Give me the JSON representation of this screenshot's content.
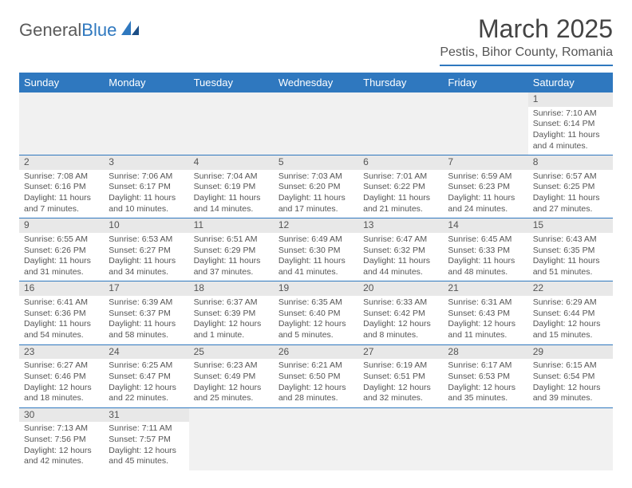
{
  "logo": {
    "text1": "General",
    "text2": "Blue"
  },
  "title": "March 2025",
  "location": "Pestis, Bihor County, Romania",
  "colors": {
    "accent": "#2f78bf",
    "header_bg": "#2f78bf",
    "header_fg": "#ffffff",
    "daynum_bg": "#e8e8e8",
    "blank_bg": "#f1f1f1"
  },
  "weekdays": [
    "Sunday",
    "Monday",
    "Tuesday",
    "Wednesday",
    "Thursday",
    "Friday",
    "Saturday"
  ],
  "days": {
    "1": {
      "sunrise": "7:10 AM",
      "sunset": "6:14 PM",
      "daylight": "11 hours and 4 minutes."
    },
    "2": {
      "sunrise": "7:08 AM",
      "sunset": "6:16 PM",
      "daylight": "11 hours and 7 minutes."
    },
    "3": {
      "sunrise": "7:06 AM",
      "sunset": "6:17 PM",
      "daylight": "11 hours and 10 minutes."
    },
    "4": {
      "sunrise": "7:04 AM",
      "sunset": "6:19 PM",
      "daylight": "11 hours and 14 minutes."
    },
    "5": {
      "sunrise": "7:03 AM",
      "sunset": "6:20 PM",
      "daylight": "11 hours and 17 minutes."
    },
    "6": {
      "sunrise": "7:01 AM",
      "sunset": "6:22 PM",
      "daylight": "11 hours and 21 minutes."
    },
    "7": {
      "sunrise": "6:59 AM",
      "sunset": "6:23 PM",
      "daylight": "11 hours and 24 minutes."
    },
    "8": {
      "sunrise": "6:57 AM",
      "sunset": "6:25 PM",
      "daylight": "11 hours and 27 minutes."
    },
    "9": {
      "sunrise": "6:55 AM",
      "sunset": "6:26 PM",
      "daylight": "11 hours and 31 minutes."
    },
    "10": {
      "sunrise": "6:53 AM",
      "sunset": "6:27 PM",
      "daylight": "11 hours and 34 minutes."
    },
    "11": {
      "sunrise": "6:51 AM",
      "sunset": "6:29 PM",
      "daylight": "11 hours and 37 minutes."
    },
    "12": {
      "sunrise": "6:49 AM",
      "sunset": "6:30 PM",
      "daylight": "11 hours and 41 minutes."
    },
    "13": {
      "sunrise": "6:47 AM",
      "sunset": "6:32 PM",
      "daylight": "11 hours and 44 minutes."
    },
    "14": {
      "sunrise": "6:45 AM",
      "sunset": "6:33 PM",
      "daylight": "11 hours and 48 minutes."
    },
    "15": {
      "sunrise": "6:43 AM",
      "sunset": "6:35 PM",
      "daylight": "11 hours and 51 minutes."
    },
    "16": {
      "sunrise": "6:41 AM",
      "sunset": "6:36 PM",
      "daylight": "11 hours and 54 minutes."
    },
    "17": {
      "sunrise": "6:39 AM",
      "sunset": "6:37 PM",
      "daylight": "11 hours and 58 minutes."
    },
    "18": {
      "sunrise": "6:37 AM",
      "sunset": "6:39 PM",
      "daylight": "12 hours and 1 minute."
    },
    "19": {
      "sunrise": "6:35 AM",
      "sunset": "6:40 PM",
      "daylight": "12 hours and 5 minutes."
    },
    "20": {
      "sunrise": "6:33 AM",
      "sunset": "6:42 PM",
      "daylight": "12 hours and 8 minutes."
    },
    "21": {
      "sunrise": "6:31 AM",
      "sunset": "6:43 PM",
      "daylight": "12 hours and 11 minutes."
    },
    "22": {
      "sunrise": "6:29 AM",
      "sunset": "6:44 PM",
      "daylight": "12 hours and 15 minutes."
    },
    "23": {
      "sunrise": "6:27 AM",
      "sunset": "6:46 PM",
      "daylight": "12 hours and 18 minutes."
    },
    "24": {
      "sunrise": "6:25 AM",
      "sunset": "6:47 PM",
      "daylight": "12 hours and 22 minutes."
    },
    "25": {
      "sunrise": "6:23 AM",
      "sunset": "6:49 PM",
      "daylight": "12 hours and 25 minutes."
    },
    "26": {
      "sunrise": "6:21 AM",
      "sunset": "6:50 PM",
      "daylight": "12 hours and 28 minutes."
    },
    "27": {
      "sunrise": "6:19 AM",
      "sunset": "6:51 PM",
      "daylight": "12 hours and 32 minutes."
    },
    "28": {
      "sunrise": "6:17 AM",
      "sunset": "6:53 PM",
      "daylight": "12 hours and 35 minutes."
    },
    "29": {
      "sunrise": "6:15 AM",
      "sunset": "6:54 PM",
      "daylight": "12 hours and 39 minutes."
    },
    "30": {
      "sunrise": "7:13 AM",
      "sunset": "7:56 PM",
      "daylight": "12 hours and 42 minutes."
    },
    "31": {
      "sunrise": "7:11 AM",
      "sunset": "7:57 PM",
      "daylight": "12 hours and 45 minutes."
    }
  },
  "labels": {
    "sunrise": "Sunrise:",
    "sunset": "Sunset:",
    "daylight": "Daylight:"
  },
  "layout": [
    [
      null,
      null,
      null,
      null,
      null,
      null,
      "1"
    ],
    [
      "2",
      "3",
      "4",
      "5",
      "6",
      "7",
      "8"
    ],
    [
      "9",
      "10",
      "11",
      "12",
      "13",
      "14",
      "15"
    ],
    [
      "16",
      "17",
      "18",
      "19",
      "20",
      "21",
      "22"
    ],
    [
      "23",
      "24",
      "25",
      "26",
      "27",
      "28",
      "29"
    ],
    [
      "30",
      "31",
      null,
      null,
      null,
      null,
      null
    ]
  ]
}
